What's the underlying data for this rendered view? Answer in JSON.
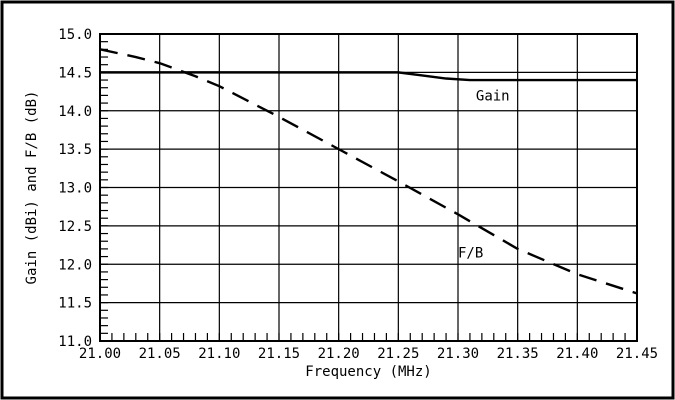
{
  "chart_data": {
    "type": "line",
    "xlabel": "Frequency (MHz)",
    "ylabel": "Gain (dBi) and F/B (dB)",
    "xlim": [
      21.0,
      21.45
    ],
    "ylim": [
      11.0,
      15.0
    ],
    "grid": true,
    "x_ticks": [
      "21.00",
      "21.05",
      "21.10",
      "21.15",
      "21.20",
      "21.25",
      "21.30",
      "21.35",
      "21.40",
      "21.45"
    ],
    "y_ticks": [
      "11.0",
      "11.5",
      "12.0",
      "12.5",
      "13.0",
      "13.5",
      "14.0",
      "14.5",
      "15.0"
    ],
    "series": [
      {
        "name": "Gain",
        "style": "solid",
        "color": "#000000",
        "x": [
          21.0,
          21.05,
          21.1,
          21.15,
          21.2,
          21.23,
          21.25,
          21.27,
          21.29,
          21.31,
          21.35,
          21.4,
          21.45
        ],
        "y": [
          14.5,
          14.5,
          14.5,
          14.5,
          14.5,
          14.5,
          14.5,
          14.46,
          14.42,
          14.4,
          14.4,
          14.4,
          14.4
        ]
      },
      {
        "name": "F/B",
        "style": "dashed",
        "color": "#000000",
        "x": [
          21.0,
          21.03,
          21.05,
          21.08,
          21.1,
          21.15,
          21.2,
          21.25,
          21.3,
          21.35,
          21.4,
          21.45
        ],
        "y": [
          14.8,
          14.7,
          14.62,
          14.45,
          14.32,
          13.92,
          13.5,
          13.08,
          12.65,
          12.2,
          11.87,
          11.62
        ]
      }
    ],
    "annotations": [
      {
        "text": "Gain",
        "x": 21.315,
        "y": 14.2
      },
      {
        "text": "F/B",
        "x": 21.3,
        "y": 12.15
      }
    ]
  }
}
